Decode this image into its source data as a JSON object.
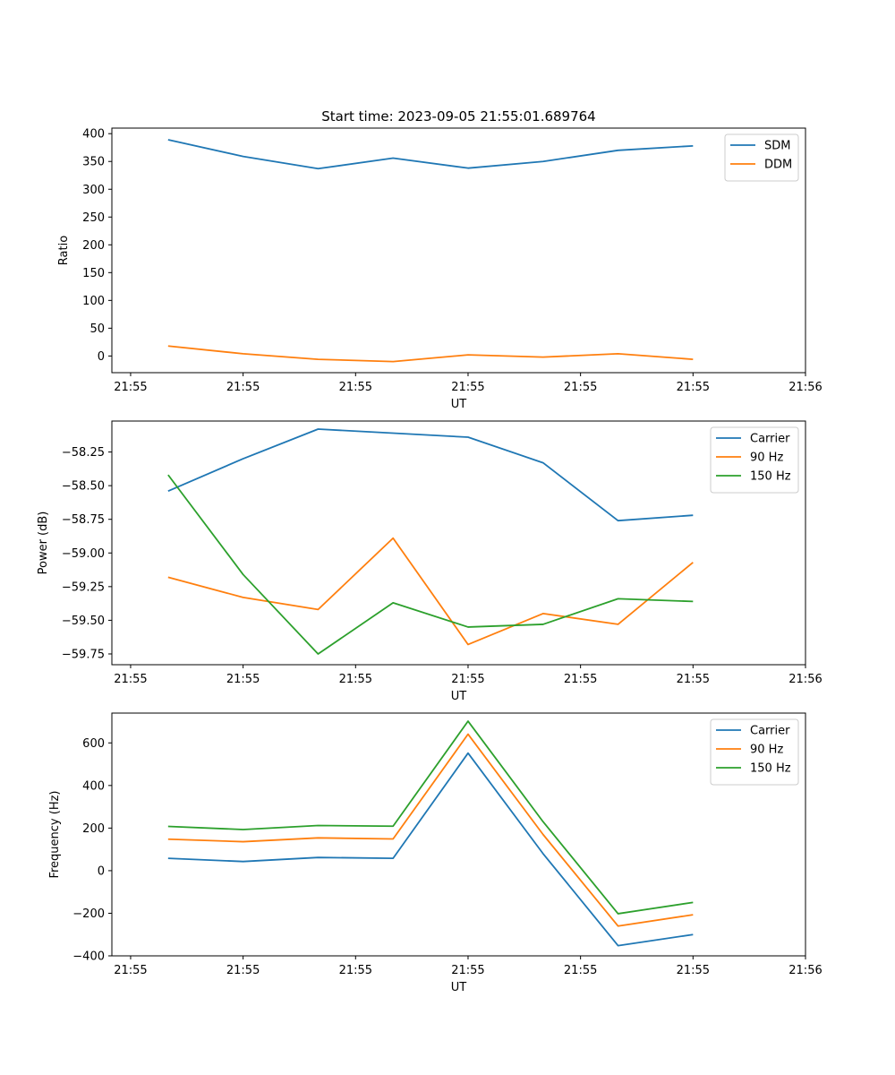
{
  "title": "Start time: 2023-09-05 21:55:01.689764",
  "chart_data": [
    {
      "type": "line",
      "title": "Start time: 2023-09-05 21:55:01.689764",
      "xlabel": "UT",
      "ylabel": "Ratio",
      "x": [
        1,
        2,
        3,
        4,
        5,
        6,
        7,
        8
      ],
      "xlim": [
        0.25,
        9.5
      ],
      "x_ticks": [
        0.5,
        2,
        3.5,
        5,
        6.5,
        8,
        9.5
      ],
      "x_tick_labels": [
        "21:55",
        "21:55",
        "21:55",
        "21:55",
        "21:55",
        "21:55",
        "21:56"
      ],
      "ylim": [
        -30,
        410
      ],
      "y_ticks": [
        0,
        50,
        100,
        150,
        200,
        250,
        300,
        350,
        400
      ],
      "y_tick_labels": [
        "0",
        "50",
        "100",
        "150",
        "200",
        "250",
        "300",
        "350",
        "400"
      ],
      "legend_position": "top-right",
      "series": [
        {
          "name": "SDM",
          "color": "#1f77b4",
          "values": [
            389,
            359,
            337,
            356,
            338,
            350,
            370,
            378
          ]
        },
        {
          "name": "DDM",
          "color": "#ff7f0e",
          "values": [
            18,
            4,
            -6,
            -10,
            2,
            -2,
            4,
            -6
          ]
        }
      ]
    },
    {
      "type": "line",
      "title": "",
      "xlabel": "UT",
      "ylabel": "Power (dB)",
      "x": [
        1,
        2,
        3,
        4,
        5,
        6,
        7,
        8
      ],
      "xlim": [
        0.25,
        9.5
      ],
      "x_ticks": [
        0.5,
        2,
        3.5,
        5,
        6.5,
        8,
        9.5
      ],
      "x_tick_labels": [
        "21:55",
        "21:55",
        "21:55",
        "21:55",
        "21:55",
        "21:55",
        "21:56"
      ],
      "ylim": [
        -59.83,
        -58.02
      ],
      "y_ticks": [
        -58.25,
        -58.5,
        -58.75,
        -59.0,
        -59.25,
        -59.5,
        -59.75
      ],
      "y_tick_labels": [
        "−58.25",
        "−58.50",
        "−58.75",
        "−59.00",
        "−59.25",
        "−59.50",
        "−59.75"
      ],
      "legend_position": "top-right",
      "series": [
        {
          "name": "Carrier",
          "color": "#1f77b4",
          "values": [
            -58.54,
            -58.3,
            -58.08,
            -58.11,
            -58.14,
            -58.33,
            -58.76,
            -58.72
          ]
        },
        {
          "name": "90 Hz",
          "color": "#ff7f0e",
          "values": [
            -59.18,
            -59.33,
            -59.42,
            -58.89,
            -59.68,
            -59.45,
            -59.53,
            -59.07
          ]
        },
        {
          "name": "150 Hz",
          "color": "#2ca02c",
          "values": [
            -58.42,
            -59.16,
            -59.75,
            -59.37,
            -59.55,
            -59.53,
            -59.34,
            -59.36
          ]
        }
      ]
    },
    {
      "type": "line",
      "title": "",
      "xlabel": "UT",
      "ylabel": "Frequency (Hz)",
      "x": [
        1,
        2,
        3,
        4,
        5,
        6,
        7,
        8
      ],
      "xlim": [
        0.25,
        9.5
      ],
      "x_ticks": [
        0.5,
        2,
        3.5,
        5,
        6.5,
        8,
        9.5
      ],
      "x_tick_labels": [
        "21:55",
        "21:55",
        "21:55",
        "21:55",
        "21:55",
        "21:55",
        "21:56"
      ],
      "ylim": [
        -400,
        740
      ],
      "y_ticks": [
        -400,
        -200,
        0,
        200,
        400,
        600
      ],
      "y_tick_labels": [
        "−400",
        "−200",
        "0",
        "200",
        "400",
        "600"
      ],
      "legend_position": "top-right",
      "series": [
        {
          "name": "Carrier",
          "color": "#1f77b4",
          "values": [
            58,
            43,
            62,
            58,
            552,
            80,
            -352,
            -300
          ]
        },
        {
          "name": "90 Hz",
          "color": "#ff7f0e",
          "values": [
            148,
            136,
            154,
            149,
            641,
            170,
            -260,
            -207
          ]
        },
        {
          "name": "150 Hz",
          "color": "#2ca02c",
          "values": [
            208,
            193,
            212,
            209,
            702,
            230,
            -202,
            -149
          ]
        }
      ]
    }
  ]
}
